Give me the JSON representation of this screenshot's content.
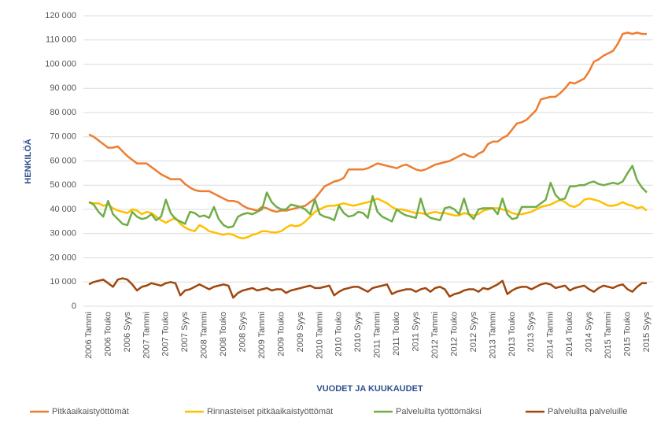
{
  "chart_data": {
    "type": "line",
    "y_label": "HENKILÖÄ",
    "x_label": "VUODET JA KUUKAUDET",
    "categories": [
      "2006 Tammi",
      null,
      null,
      null,
      "2006 Touko",
      null,
      null,
      null,
      "2006 Syys",
      null,
      null,
      null,
      "2007 Tammi",
      null,
      null,
      null,
      "2007 Touko",
      null,
      null,
      null,
      "2007 Syys",
      null,
      null,
      null,
      "2008 Tammi",
      null,
      null,
      null,
      "2008 Touko",
      null,
      null,
      null,
      "2008 Syys",
      null,
      null,
      null,
      "2009 Tammi",
      null,
      null,
      null,
      "2009 Touko",
      null,
      null,
      null,
      "2009 Syys",
      null,
      null,
      null,
      "2010 Tammi",
      null,
      null,
      null,
      "2010 Touko",
      null,
      null,
      null,
      "2010 Syys",
      null,
      null,
      null,
      "2011 Tammi",
      null,
      null,
      null,
      "2011 Touko",
      null,
      null,
      null,
      "2011 Syys",
      null,
      null,
      null,
      "2012 Tammi",
      null,
      null,
      null,
      "2012 Touko",
      null,
      null,
      null,
      "2012 Syys",
      null,
      null,
      null,
      "2013 Tammi",
      null,
      null,
      null,
      "2013 Touko",
      null,
      null,
      null,
      "2013 Syys",
      null,
      null,
      null,
      "2014 Tammi",
      null,
      null,
      null,
      "2014 Touko",
      null,
      null,
      null,
      "2014 Syys",
      null,
      null,
      null,
      "2015 Tammi",
      null,
      null,
      null,
      "2015 Touko",
      null,
      null,
      null,
      "2015 Syys"
    ],
    "series": [
      {
        "name": "Pitkäaikaistyöttömät",
        "color": "#ed7d31",
        "values": [
          71000,
          70000,
          68500,
          67000,
          65500,
          65500,
          66000,
          64000,
          62000,
          60500,
          59000,
          59000,
          59000,
          57500,
          56000,
          54500,
          53500,
          52500,
          52500,
          52500,
          50500,
          49000,
          48000,
          47500,
          47500,
          47500,
          46500,
          45500,
          44500,
          43500,
          43500,
          43000,
          41500,
          40500,
          40000,
          39500,
          41000,
          40500,
          39500,
          39000,
          39500,
          39500,
          40000,
          40500,
          41000,
          41500,
          43000,
          44500,
          47000,
          49500,
          50500,
          51500,
          52000,
          53000,
          56500,
          56500,
          56500,
          56500,
          57000,
          58000,
          59000,
          58500,
          58000,
          57500,
          57000,
          58000,
          58500,
          57500,
          56500,
          56000,
          56500,
          57500,
          58500,
          59000,
          59500,
          60000,
          61000,
          62000,
          63000,
          62000,
          61500,
          63000,
          64000,
          67000,
          68000,
          68000,
          69500,
          70500,
          73000,
          75500,
          76000,
          77000,
          79000,
          81000,
          85500,
          86000,
          86500,
          86500,
          88000,
          90000,
          92500,
          92000,
          93000,
          94000,
          97000,
          101000,
          102000,
          103500,
          104500,
          105500,
          108500,
          112500,
          113000,
          112500,
          113000,
          112500,
          112500
        ]
      },
      {
        "name": "Rinnasteiset pitkäaikaistyöttömät",
        "color": "#ffc000",
        "values": [
          43000,
          42500,
          42500,
          41500,
          42000,
          40500,
          39500,
          39000,
          38500,
          40000,
          39500,
          38000,
          39000,
          38500,
          37000,
          35500,
          34500,
          35500,
          36500,
          34000,
          32500,
          31500,
          31000,
          33500,
          32500,
          31000,
          30500,
          30000,
          29500,
          30000,
          29500,
          28500,
          28000,
          28500,
          29500,
          30000,
          31000,
          31000,
          30500,
          30500,
          31000,
          32500,
          33500,
          33000,
          33500,
          35000,
          37000,
          39000,
          40000,
          41000,
          41500,
          41500,
          42000,
          42500,
          42000,
          41500,
          42000,
          42500,
          43000,
          43500,
          44500,
          43500,
          42500,
          41000,
          40000,
          40000,
          39500,
          39000,
          38500,
          38500,
          38000,
          38500,
          39000,
          38500,
          38500,
          38000,
          37500,
          37500,
          38500,
          38000,
          37500,
          38000,
          39500,
          40000,
          40500,
          40500,
          40000,
          39500,
          38500,
          38000,
          38000,
          38500,
          39000,
          40000,
          41000,
          41500,
          42000,
          43000,
          44000,
          43000,
          41500,
          41000,
          42000,
          44000,
          44500,
          44000,
          43500,
          42500,
          41500,
          41500,
          42000,
          43000,
          42000,
          41500,
          40500,
          41000,
          39500
        ]
      },
      {
        "name": "Palveluilta työttömäksi",
        "color": "#70ad47",
        "values": [
          43000,
          42000,
          39000,
          37000,
          43500,
          38000,
          36000,
          34000,
          33500,
          39000,
          37000,
          36000,
          36500,
          38000,
          35500,
          37000,
          44000,
          38500,
          36000,
          35000,
          34000,
          39000,
          38500,
          37000,
          37500,
          36500,
          41000,
          36000,
          33500,
          32500,
          33000,
          37000,
          38000,
          38500,
          38000,
          39000,
          40000,
          47000,
          43000,
          41000,
          40000,
          40000,
          42000,
          41500,
          41000,
          40000,
          38000,
          44000,
          38000,
          37000,
          36500,
          35500,
          41500,
          38500,
          37000,
          37500,
          39000,
          38500,
          36500,
          45500,
          39000,
          37000,
          36000,
          35000,
          40000,
          38500,
          37500,
          37000,
          36500,
          44500,
          38000,
          36500,
          36000,
          35500,
          40500,
          41000,
          40000,
          38000,
          44500,
          38000,
          36000,
          40000,
          40500,
          40500,
          40500,
          38000,
          44500,
          38000,
          36000,
          36500,
          41000,
          41000,
          41000,
          41000,
          42500,
          44000,
          51000,
          46000,
          44000,
          44500,
          49500,
          49500,
          50000,
          50000,
          51000,
          51500,
          50500,
          50000,
          50500,
          51000,
          50500,
          51500,
          55000,
          58000,
          52000,
          49000,
          47000
        ]
      },
      {
        "name": "Palveluilta palveluille",
        "color": "#9e480e",
        "values": [
          9000,
          10000,
          10500,
          11000,
          9500,
          8000,
          11000,
          11500,
          11000,
          9000,
          6500,
          8000,
          8500,
          9500,
          9000,
          8500,
          9500,
          10000,
          9500,
          4500,
          6500,
          7000,
          8000,
          9000,
          8000,
          7000,
          8000,
          8500,
          9000,
          8500,
          3500,
          5500,
          6500,
          7000,
          7500,
          6500,
          7000,
          7500,
          6500,
          7000,
          7000,
          5500,
          6500,
          7000,
          7500,
          8000,
          8500,
          7500,
          7500,
          8000,
          8500,
          4500,
          6000,
          7000,
          7500,
          8000,
          8000,
          7000,
          6000,
          7500,
          8000,
          8500,
          9000,
          5000,
          6000,
          6500,
          7000,
          7000,
          6000,
          7000,
          7500,
          6000,
          7500,
          8000,
          7000,
          4000,
          5000,
          5500,
          6500,
          7000,
          7000,
          6000,
          7500,
          7000,
          8000,
          9000,
          10500,
          5000,
          6500,
          7500,
          8000,
          8000,
          7000,
          8000,
          9000,
          9500,
          9000,
          7500,
          8000,
          8500,
          6500,
          7500,
          8000,
          8500,
          7000,
          6000,
          7500,
          8500,
          8000,
          7500,
          8500,
          9000,
          7000,
          6000,
          8000,
          9500,
          9500
        ]
      }
    ],
    "ylim": [
      0,
      120000
    ],
    "yticks": [
      0,
      {
        "value": 10000,
        "label": "10 000"
      },
      {
        "value": 20000,
        "label": "20 000"
      },
      {
        "value": 30000,
        "label": "30 000"
      },
      {
        "value": 40000,
        "label": "40 000"
      },
      {
        "value": 50000,
        "label": "50 000"
      },
      {
        "value": 60000,
        "label": "60 000"
      },
      {
        "value": 70000,
        "label": "70 000"
      },
      {
        "value": 80000,
        "label": "80 000"
      },
      {
        "value": 90000,
        "label": "90 000"
      },
      {
        "value": 100000,
        "label": "100 000"
      },
      {
        "value": 110000,
        "label": "110 000"
      },
      {
        "value": 120000,
        "label": "120 000"
      }
    ],
    "grid": true,
    "legend": "bottom"
  }
}
